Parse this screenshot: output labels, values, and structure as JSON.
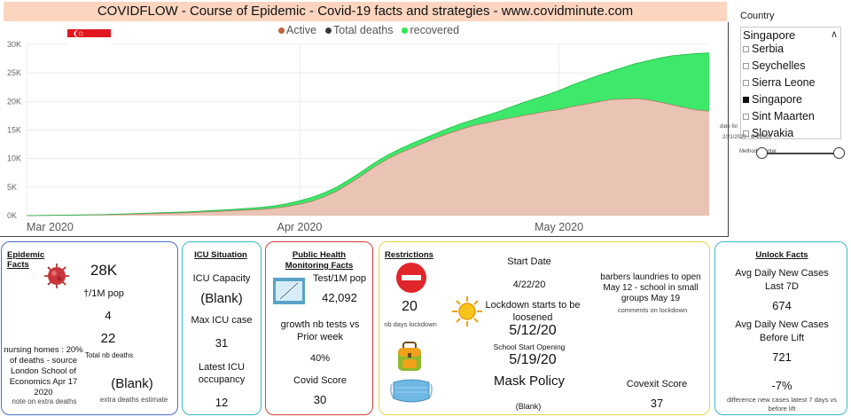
{
  "header": {
    "title": "COVIDFLOW - Course of Epidemic -  Covid-19 facts and strategies  - www.covidminute.com"
  },
  "chart_data": {
    "type": "area",
    "title": "",
    "series": [
      {
        "name": "Active",
        "color": "#c0623b"
      },
      {
        "name": "Total deaths",
        "color": "#3a3a3a"
      },
      {
        "name": "recovered",
        "color": "#2ee84f"
      }
    ],
    "y_ticks": [
      "0K",
      "5K",
      "10K",
      "15K",
      "20K",
      "25K",
      "30K"
    ],
    "x_ticks": [
      "Mar 2020",
      "Apr 2020",
      "May 2020"
    ],
    "ylim": [
      0,
      30000
    ],
    "x": [
      0,
      10,
      20,
      30,
      40,
      45,
      50,
      55,
      60,
      65,
      70,
      75,
      80,
      85,
      90,
      95,
      100,
      105,
      110,
      115,
      120,
      125,
      130,
      135,
      140,
      145,
      150,
      155,
      160,
      165,
      170,
      175,
      180,
      185,
      190,
      195,
      200,
      205,
      210,
      215,
      220,
      225,
      230,
      235,
      240,
      245,
      250,
      255,
      260,
      265,
      270,
      275
    ],
    "active": [
      0,
      50,
      100,
      150,
      250,
      300,
      350,
      400,
      450,
      500,
      600,
      700,
      800,
      900,
      1000,
      1100,
      1300,
      1600,
      2000,
      2500,
      3300,
      4300,
      5600,
      7000,
      8500,
      9800,
      10900,
      11800,
      12700,
      13600,
      14400,
      15100,
      15800,
      16200,
      16700,
      17100,
      17500,
      17900,
      18300,
      18600,
      19100,
      19500,
      19900,
      20300,
      20400,
      20500,
      20300,
      19900,
      19400,
      18900,
      18500,
      18300
    ],
    "total": [
      0,
      60,
      110,
      180,
      300,
      380,
      450,
      520,
      590,
      660,
      780,
      900,
      1000,
      1150,
      1300,
      1450,
      1700,
      2100,
      2600,
      3200,
      4000,
      5000,
      6300,
      7700,
      9200,
      10500,
      11600,
      12600,
      13500,
      14400,
      15300,
      16100,
      16800,
      17500,
      18200,
      19000,
      19800,
      20500,
      21200,
      22000,
      22900,
      23700,
      24500,
      25200,
      25900,
      26600,
      27100,
      27600,
      28000,
      28200,
      28400,
      28500
    ]
  },
  "slicer": {
    "label": "Country",
    "selected": "Singapore",
    "items": [
      {
        "name": "Serbia",
        "checked": false
      },
      {
        "name": "Seychelles",
        "checked": false
      },
      {
        "name": "Sierra Leone",
        "checked": false
      },
      {
        "name": "Singapore",
        "checked": true
      },
      {
        "name": "Sint Maarten",
        "checked": false
      },
      {
        "name": "Slovakia",
        "checked": false
      }
    ],
    "date_for": "date for",
    "date_range": "2/21/2020 - 6/4/2020",
    "method_label": "Method ... enter"
  },
  "epidemic": {
    "title": "Epidemic Facts",
    "total_value": "28K",
    "per_1m_label": "†/1M pop",
    "per_1m_value": "4",
    "nursing_note": "nursing homes : 20% of deaths - source London School of Economics Apr 17 2020",
    "deaths_value": "22",
    "deaths_label": "Total nb deaths",
    "extra_value": "(Blank)",
    "extra_note": "note on extra deaths",
    "extra_label": "extra deaths estimate"
  },
  "icu": {
    "title": "ICU Situation",
    "capacity_label": "ICU Capacity",
    "capacity_value": "(Blank)",
    "max_label": "Max ICU case",
    "max_value": "31",
    "occupancy_label": "Latest ICU occupancy",
    "occupancy_value": "12"
  },
  "health": {
    "title": "Public Health Monitoring Facts",
    "tests_label": "Test/1M pop",
    "tests_value": "42,092",
    "growth_label": "growth nb tests vs Prior week",
    "growth_value": "40%",
    "score_label": "Covid Score",
    "score_value": "30"
  },
  "restrictions": {
    "title": "Restrictions",
    "days_value": "20",
    "days_label": "nb days lockdown",
    "start_label": "Start Date",
    "start_value": "4/22/20",
    "loosen_label": "Lockdown starts to be loosened",
    "loosen_value": "5/12/20",
    "school_label": "School Start Opening",
    "school_value": "5/19/20",
    "mask_label": "Mask Policy",
    "mask_value": "(Blank)",
    "comment": "barbers laundries to open May 12 - school in small groups May 19",
    "comment_label": "comments on lockdown",
    "covexit_label": "Covexit Score",
    "covexit_value": "37"
  },
  "unlock": {
    "title": "Unlock Facts",
    "avg7_label": "Avg Daily New Cases Last 7D",
    "avg7_value": "674",
    "before_label": "Avg Daily New Cases Before Lift",
    "before_value": "721",
    "diff_value": "-7%",
    "diff_label": "difference new cases latest 7 days vs before lift"
  }
}
